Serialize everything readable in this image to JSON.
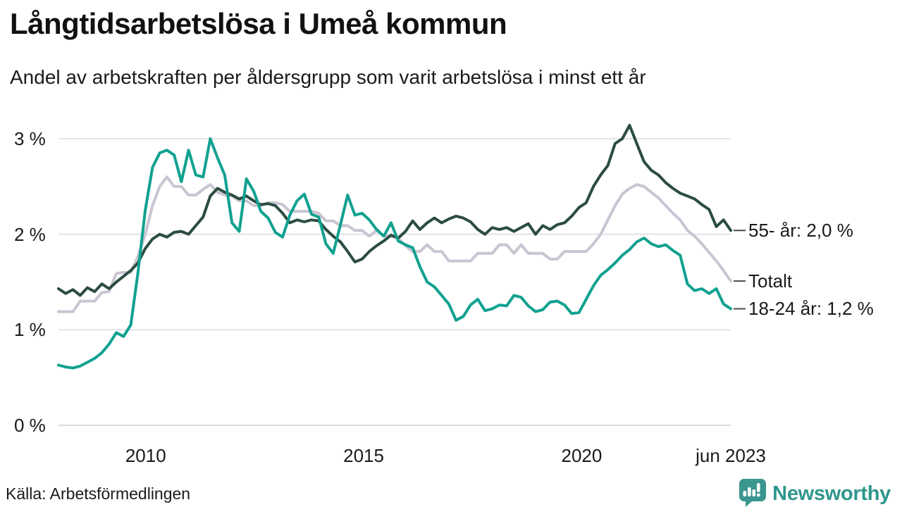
{
  "header": {
    "title": "Långtidsarbetslösa i Umeå kommun",
    "subtitle": "Andel av arbetskraften per åldersgrupp som varit arbetslösa i minst ett år"
  },
  "source": {
    "label": "Källa: Arbetsförmedlingen"
  },
  "brand": {
    "name": "Newsworthy",
    "color": "#2F968C",
    "icon": "newsworthy-bubble-chart-icon",
    "icon_color": "#3A968E"
  },
  "colors": {
    "background": "#ffffff",
    "text": "#1a1a1a",
    "gridline": "#e3e3e8",
    "zero_line": "#dcdce1",
    "leader_dash": "#4a4a4a"
  },
  "chart_data": {
    "type": "line",
    "title": "Långtidsarbetslösa i Umeå kommun",
    "subtitle": "Andel av arbetskraften per åldersgrupp som varit arbetslösa i minst ett år",
    "unit": "% av arbetskraften",
    "x_range": [
      2008.0,
      2023.42
    ],
    "ylim": [
      0,
      3.3
    ],
    "grid": "horizontal",
    "legend_position": "right-end-labels",
    "x_ticks": [
      {
        "label": "2010",
        "year": 2010
      },
      {
        "label": "2015",
        "year": 2015
      },
      {
        "label": "2020",
        "year": 2020
      },
      {
        "label": "jun 2023",
        "year": 2023.42
      }
    ],
    "y_ticks": [
      {
        "label": "3 %",
        "value": 3
      },
      {
        "label": "2 %",
        "value": 2
      },
      {
        "label": "1 %",
        "value": 1
      },
      {
        "label": "0 %",
        "value": 0
      }
    ],
    "series": [
      {
        "name": "Totalt",
        "end_label": "Totalt",
        "end_value": 1.5,
        "color": "#C9C5D2",
        "values": [
          1.19,
          1.19,
          1.19,
          1.3,
          1.3,
          1.3,
          1.39,
          1.4,
          1.59,
          1.6,
          1.6,
          1.77,
          2.0,
          2.3,
          2.5,
          2.6,
          2.5,
          2.5,
          2.41,
          2.41,
          2.47,
          2.52,
          2.44,
          2.41,
          2.4,
          2.35,
          2.35,
          2.3,
          2.3,
          2.33,
          2.33,
          2.31,
          2.24,
          2.24,
          2.24,
          2.24,
          2.22,
          2.14,
          2.14,
          2.09,
          2.09,
          2.04,
          2.04,
          1.98,
          2.04,
          1.98,
          1.98,
          1.96,
          1.88,
          1.82,
          1.82,
          1.89,
          1.82,
          1.82,
          1.72,
          1.72,
          1.72,
          1.72,
          1.8,
          1.8,
          1.8,
          1.89,
          1.89,
          1.8,
          1.89,
          1.8,
          1.8,
          1.8,
          1.74,
          1.74,
          1.82,
          1.82,
          1.82,
          1.82,
          1.9,
          2.0,
          2.15,
          2.3,
          2.42,
          2.48,
          2.52,
          2.5,
          2.44,
          2.38,
          2.3,
          2.22,
          2.15,
          2.04,
          1.98,
          1.9,
          1.81,
          1.72,
          1.62,
          1.51
        ]
      },
      {
        "name": "55- år",
        "end_label": "55- år: 2,0 %",
        "end_value": 2.0,
        "color": "#2B4C42",
        "values": [
          1.43,
          1.38,
          1.42,
          1.36,
          1.44,
          1.4,
          1.48,
          1.43,
          1.5,
          1.56,
          1.62,
          1.7,
          1.85,
          1.95,
          2.0,
          1.97,
          2.02,
          2.03,
          2.0,
          2.09,
          2.18,
          2.4,
          2.48,
          2.44,
          2.41,
          2.37,
          2.4,
          2.35,
          2.31,
          2.32,
          2.3,
          2.22,
          2.12,
          2.15,
          2.13,
          2.15,
          2.14,
          2.05,
          1.98,
          1.92,
          1.82,
          1.71,
          1.74,
          1.82,
          1.88,
          1.93,
          1.99,
          1.96,
          2.03,
          2.14,
          2.05,
          2.12,
          2.17,
          2.12,
          2.16,
          2.19,
          2.17,
          2.13,
          2.05,
          2.0,
          2.07,
          2.05,
          2.07,
          2.03,
          2.07,
          2.11,
          2.0,
          2.09,
          2.05,
          2.1,
          2.12,
          2.19,
          2.28,
          2.33,
          2.5,
          2.62,
          2.72,
          2.95,
          3.0,
          3.14,
          2.95,
          2.76,
          2.67,
          2.62,
          2.54,
          2.48,
          2.43,
          2.4,
          2.37,
          2.31,
          2.26,
          2.08,
          2.15,
          2.04
        ]
      },
      {
        "name": "18-24 år",
        "end_label": "18-24 år: 1,2 %",
        "end_value": 1.2,
        "color": "#11A190",
        "values": [
          0.63,
          0.61,
          0.6,
          0.62,
          0.66,
          0.7,
          0.76,
          0.85,
          0.97,
          0.93,
          1.05,
          1.6,
          2.25,
          2.7,
          2.85,
          2.88,
          2.83,
          2.55,
          2.88,
          2.62,
          2.6,
          3.0,
          2.8,
          2.62,
          2.12,
          2.03,
          2.58,
          2.45,
          2.24,
          2.17,
          2.02,
          1.97,
          2.2,
          2.35,
          2.42,
          2.21,
          2.18,
          1.9,
          1.8,
          2.1,
          2.41,
          2.2,
          2.22,
          2.15,
          2.05,
          1.98,
          2.12,
          1.93,
          1.89,
          1.86,
          1.66,
          1.5,
          1.45,
          1.36,
          1.27,
          1.1,
          1.14,
          1.26,
          1.32,
          1.2,
          1.22,
          1.26,
          1.25,
          1.36,
          1.34,
          1.25,
          1.19,
          1.21,
          1.29,
          1.3,
          1.26,
          1.17,
          1.18,
          1.32,
          1.46,
          1.57,
          1.63,
          1.7,
          1.78,
          1.84,
          1.92,
          1.96,
          1.9,
          1.87,
          1.89,
          1.83,
          1.78,
          1.48,
          1.41,
          1.43,
          1.38,
          1.43,
          1.27,
          1.22
        ]
      }
    ]
  }
}
